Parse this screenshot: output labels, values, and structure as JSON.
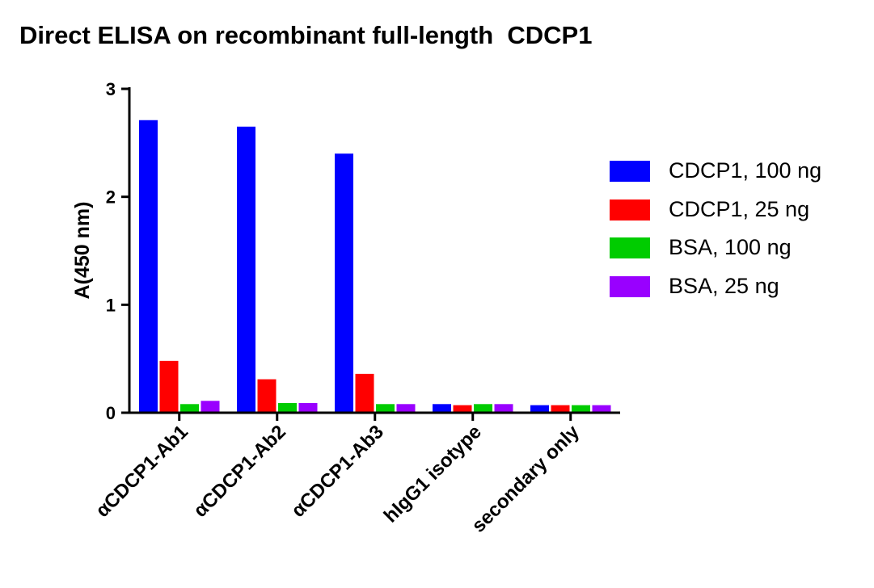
{
  "chart_data": {
    "type": "bar",
    "title": "Direct ELISA on recombinant full-length  CDCP1",
    "ylabel": "A(450 nm)",
    "xlabel": "",
    "ylim": [
      0,
      3
    ],
    "yticks": [
      "0",
      "1",
      "2",
      "3"
    ],
    "categories": [
      "αCDCP1-Ab1",
      "αCDCP1-Ab2",
      "αCDCP1-Ab3",
      "hIgG1 isotype",
      "secondary only"
    ],
    "series": [
      {
        "name": "CDCP1, 100 ng",
        "color": "#0000ff",
        "values": [
          2.71,
          2.65,
          2.4,
          0.08,
          0.07
        ]
      },
      {
        "name": "CDCP1, 25 ng",
        "color": "#ff0000",
        "values": [
          0.48,
          0.31,
          0.36,
          0.07,
          0.07
        ]
      },
      {
        "name": "BSA, 100 ng",
        "color": "#00cc00",
        "values": [
          0.08,
          0.09,
          0.08,
          0.08,
          0.07
        ]
      },
      {
        "name": "BSA, 25 ng",
        "color": "#9900ff",
        "values": [
          0.11,
          0.09,
          0.08,
          0.08,
          0.07
        ]
      }
    ],
    "legend_position": "right",
    "grid": false
  }
}
